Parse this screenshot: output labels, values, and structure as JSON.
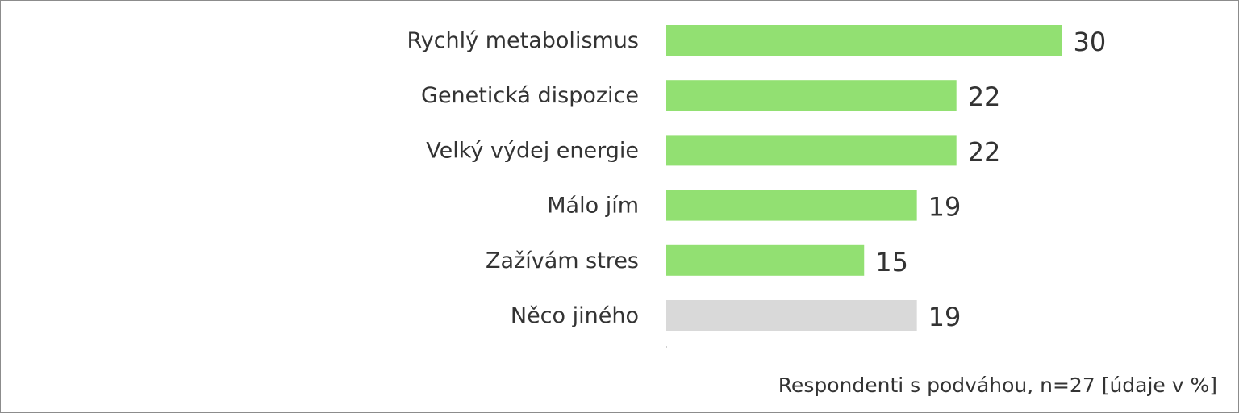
{
  "chart_data": {
    "type": "bar",
    "orientation": "horizontal",
    "categories": [
      "Rychlý metabolismus",
      "Genetická dispozice",
      "Velký výdej energie",
      "Málo jím",
      "Zažívám stres",
      "Něco jiného"
    ],
    "values": [
      30,
      22,
      22,
      19,
      15,
      19
    ],
    "colors": [
      "#92e072",
      "#92e072",
      "#92e072",
      "#92e072",
      "#92e072",
      "#d9d9d9"
    ],
    "title": "",
    "xlabel": "",
    "ylabel": "",
    "grid": false,
    "legend": "none"
  },
  "footnote": "Respondenti s podváhou, n=27 [údaje v %]"
}
